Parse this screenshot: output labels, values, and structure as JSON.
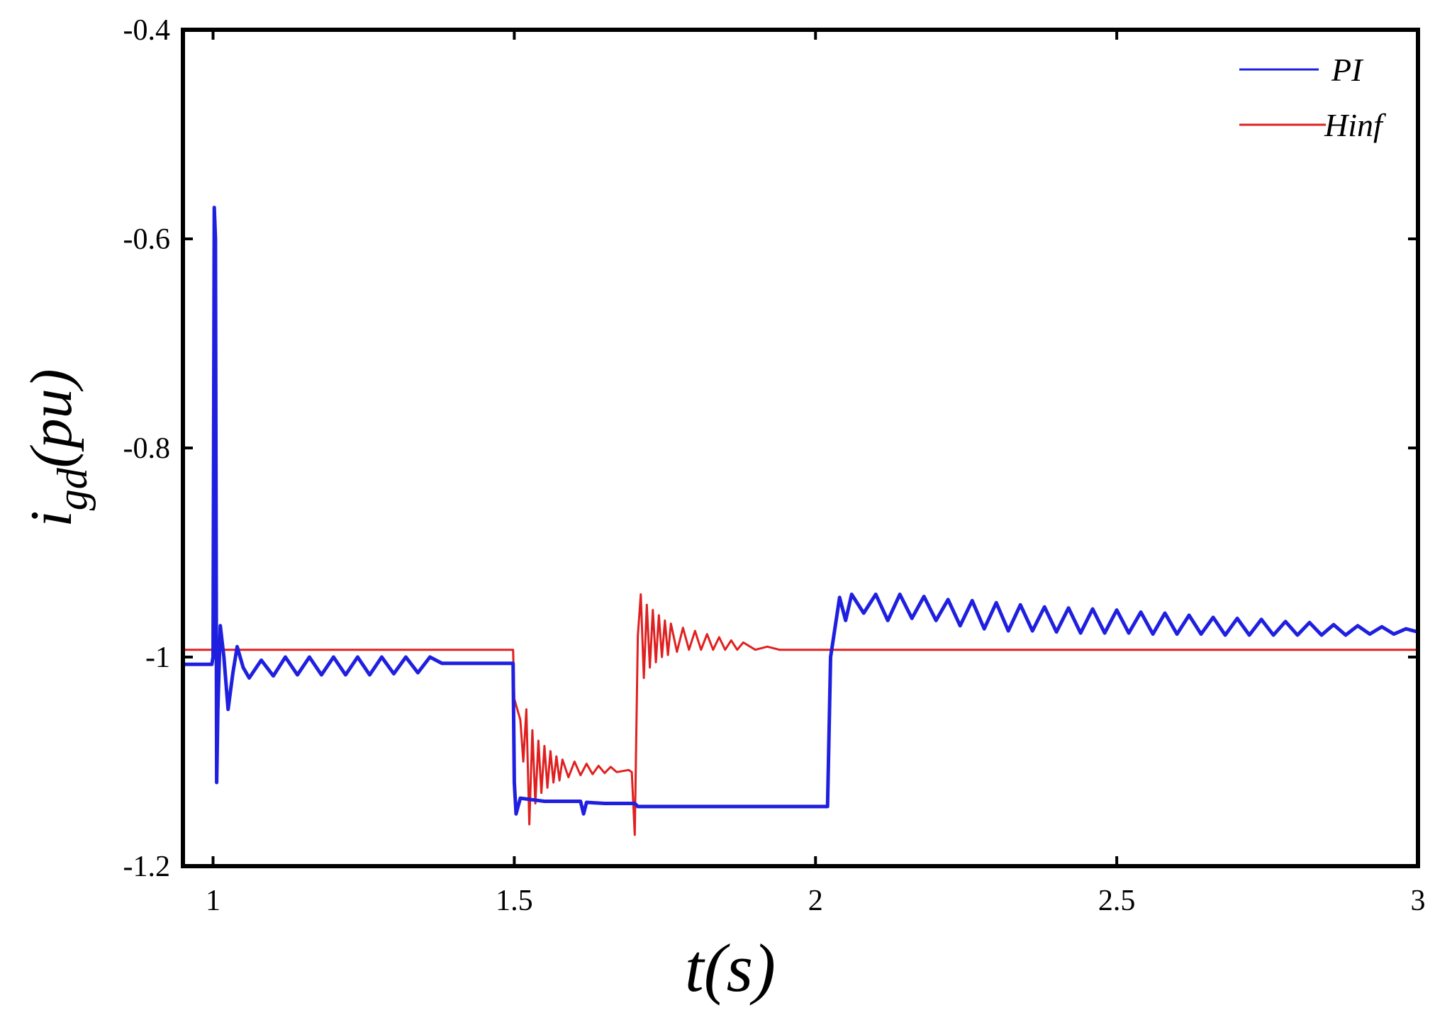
{
  "chart_data": {
    "type": "line",
    "title": "",
    "xlabel": "t(s)",
    "ylabel": "i_gd(pu)",
    "ylabel_main": "i",
    "ylabel_sub": "gd",
    "ylabel_tail": "(pu)",
    "xlim": [
      0.95,
      3.0
    ],
    "ylim": [
      -1.2,
      -0.4
    ],
    "x_ticks": [
      1,
      1.5,
      2,
      2.5,
      3
    ],
    "x_tick_labels": [
      "1",
      "1.5",
      "2",
      "2.5",
      "3"
    ],
    "y_ticks": [
      -0.4,
      -0.6,
      -0.8,
      -1,
      -1.2
    ],
    "y_tick_labels": [
      "-0.4",
      "-0.6",
      "-0.8",
      "-1",
      "-1.2"
    ],
    "grid": false,
    "legend_position": "top-right",
    "series": [
      {
        "name": "PI",
        "color": "#1f1fe0",
        "points": [
          [
            0.95,
            -1.007
          ],
          [
            0.998,
            -1.007
          ],
          [
            1.0,
            -1.0
          ],
          [
            1.002,
            -0.57
          ],
          [
            1.004,
            -0.6
          ],
          [
            1.006,
            -1.12
          ],
          [
            1.008,
            -1.05
          ],
          [
            1.012,
            -0.97
          ],
          [
            1.018,
            -1.0
          ],
          [
            1.025,
            -1.05
          ],
          [
            1.033,
            -1.015
          ],
          [
            1.04,
            -0.99
          ],
          [
            1.05,
            -1.01
          ],
          [
            1.06,
            -1.02
          ],
          [
            1.08,
            -1.003
          ],
          [
            1.1,
            -1.018
          ],
          [
            1.12,
            -1.0
          ],
          [
            1.14,
            -1.017
          ],
          [
            1.16,
            -1.0
          ],
          [
            1.18,
            -1.017
          ],
          [
            1.2,
            -1.0
          ],
          [
            1.22,
            -1.017
          ],
          [
            1.24,
            -1.0
          ],
          [
            1.26,
            -1.017
          ],
          [
            1.28,
            -1.0
          ],
          [
            1.3,
            -1.016
          ],
          [
            1.32,
            -1.0
          ],
          [
            1.34,
            -1.015
          ],
          [
            1.36,
            -1.0
          ],
          [
            1.38,
            -1.006
          ],
          [
            1.42,
            -1.006
          ],
          [
            1.46,
            -1.006
          ],
          [
            1.498,
            -1.006
          ],
          [
            1.5,
            -1.12
          ],
          [
            1.503,
            -1.15
          ],
          [
            1.51,
            -1.135
          ],
          [
            1.55,
            -1.138
          ],
          [
            1.6,
            -1.138
          ],
          [
            1.61,
            -1.138
          ],
          [
            1.615,
            -1.15
          ],
          [
            1.62,
            -1.139
          ],
          [
            1.65,
            -1.14
          ],
          [
            1.7,
            -1.14
          ],
          [
            1.705,
            -1.143
          ],
          [
            1.8,
            -1.143
          ],
          [
            1.9,
            -1.143
          ],
          [
            2.02,
            -1.143
          ],
          [
            2.025,
            -1.0
          ],
          [
            2.04,
            -0.943
          ],
          [
            2.05,
            -0.965
          ],
          [
            2.06,
            -0.94
          ],
          [
            2.08,
            -0.958
          ],
          [
            2.1,
            -0.94
          ],
          [
            2.12,
            -0.965
          ],
          [
            2.14,
            -0.94
          ],
          [
            2.16,
            -0.963
          ],
          [
            2.18,
            -0.942
          ],
          [
            2.2,
            -0.965
          ],
          [
            2.22,
            -0.945
          ],
          [
            2.24,
            -0.97
          ],
          [
            2.26,
            -0.946
          ],
          [
            2.28,
            -0.973
          ],
          [
            2.3,
            -0.948
          ],
          [
            2.32,
            -0.975
          ],
          [
            2.34,
            -0.95
          ],
          [
            2.36,
            -0.975
          ],
          [
            2.38,
            -0.952
          ],
          [
            2.4,
            -0.976
          ],
          [
            2.42,
            -0.953
          ],
          [
            2.44,
            -0.977
          ],
          [
            2.46,
            -0.954
          ],
          [
            2.48,
            -0.977
          ],
          [
            2.5,
            -0.955
          ],
          [
            2.52,
            -0.977
          ],
          [
            2.54,
            -0.957
          ],
          [
            2.56,
            -0.978
          ],
          [
            2.58,
            -0.958
          ],
          [
            2.6,
            -0.978
          ],
          [
            2.62,
            -0.96
          ],
          [
            2.64,
            -0.978
          ],
          [
            2.66,
            -0.962
          ],
          [
            2.68,
            -0.979
          ],
          [
            2.7,
            -0.963
          ],
          [
            2.72,
            -0.979
          ],
          [
            2.74,
            -0.964
          ],
          [
            2.76,
            -0.979
          ],
          [
            2.78,
            -0.966
          ],
          [
            2.8,
            -0.979
          ],
          [
            2.82,
            -0.967
          ],
          [
            2.84,
            -0.979
          ],
          [
            2.86,
            -0.969
          ],
          [
            2.88,
            -0.979
          ],
          [
            2.9,
            -0.97
          ],
          [
            2.92,
            -0.978
          ],
          [
            2.94,
            -0.971
          ],
          [
            2.96,
            -0.978
          ],
          [
            2.98,
            -0.973
          ],
          [
            3.0,
            -0.976
          ]
        ]
      },
      {
        "name": "Hinf",
        "color": "#e02020",
        "points": [
          [
            0.95,
            -0.993
          ],
          [
            1.3,
            -0.993
          ],
          [
            1.498,
            -0.993
          ],
          [
            1.5,
            -1.04
          ],
          [
            1.51,
            -1.06
          ],
          [
            1.515,
            -1.1
          ],
          [
            1.52,
            -1.05
          ],
          [
            1.525,
            -1.16
          ],
          [
            1.53,
            -1.07
          ],
          [
            1.535,
            -1.14
          ],
          [
            1.54,
            -1.08
          ],
          [
            1.545,
            -1.13
          ],
          [
            1.55,
            -1.085
          ],
          [
            1.555,
            -1.125
          ],
          [
            1.56,
            -1.09
          ],
          [
            1.565,
            -1.12
          ],
          [
            1.57,
            -1.095
          ],
          [
            1.575,
            -1.118
          ],
          [
            1.58,
            -1.098
          ],
          [
            1.59,
            -1.115
          ],
          [
            1.6,
            -1.1
          ],
          [
            1.61,
            -1.113
          ],
          [
            1.62,
            -1.102
          ],
          [
            1.63,
            -1.112
          ],
          [
            1.64,
            -1.104
          ],
          [
            1.65,
            -1.111
          ],
          [
            1.66,
            -1.105
          ],
          [
            1.67,
            -1.11
          ],
          [
            1.69,
            -1.108
          ],
          [
            1.695,
            -1.11
          ],
          [
            1.7,
            -1.17
          ],
          [
            1.705,
            -0.98
          ],
          [
            1.71,
            -0.94
          ],
          [
            1.715,
            -1.02
          ],
          [
            1.72,
            -0.95
          ],
          [
            1.725,
            -1.01
          ],
          [
            1.73,
            -0.955
          ],
          [
            1.735,
            -1.005
          ],
          [
            1.74,
            -0.96
          ],
          [
            1.745,
            -1.0
          ],
          [
            1.75,
            -0.965
          ],
          [
            1.755,
            -0.998
          ],
          [
            1.76,
            -0.968
          ],
          [
            1.77,
            -0.995
          ],
          [
            1.78,
            -0.972
          ],
          [
            1.79,
            -0.993
          ],
          [
            1.8,
            -0.975
          ],
          [
            1.81,
            -0.993
          ],
          [
            1.82,
            -0.978
          ],
          [
            1.83,
            -0.993
          ],
          [
            1.84,
            -0.981
          ],
          [
            1.85,
            -0.993
          ],
          [
            1.86,
            -0.984
          ],
          [
            1.87,
            -0.993
          ],
          [
            1.88,
            -0.986
          ],
          [
            1.9,
            -0.993
          ],
          [
            1.92,
            -0.99
          ],
          [
            1.94,
            -0.993
          ],
          [
            2.0,
            -0.993
          ],
          [
            2.5,
            -0.993
          ],
          [
            3.0,
            -0.993
          ]
        ]
      }
    ]
  }
}
